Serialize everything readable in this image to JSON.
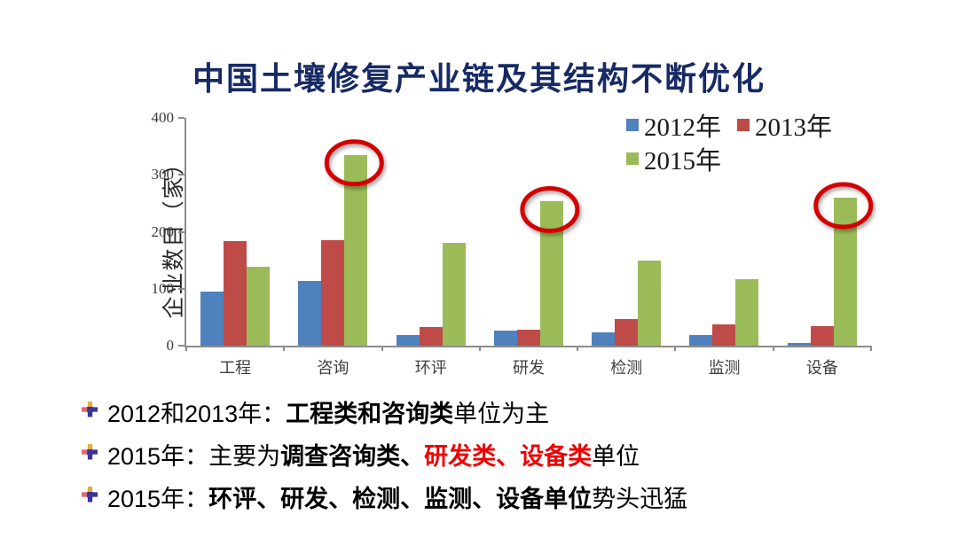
{
  "title": "中国土壤修复产业链及其结构不断优化",
  "colors": {
    "title": "#172a64",
    "axis": "#8c8c8c",
    "circle": "#d40000",
    "highlight_red": "#ee0000",
    "series_2012": "#4f81bd",
    "series_2013": "#be4b48",
    "series_2015": "#9bbb59"
  },
  "chart_data": {
    "type": "bar",
    "title": "",
    "xlabel": "",
    "ylabel": "企业数目（家）",
    "ylim": [
      0,
      400
    ],
    "y_ticks": [
      0,
      100,
      200,
      300,
      400
    ],
    "grid": false,
    "legend_position": "top-right",
    "categories": [
      "工程",
      "咨询",
      "环评",
      "研发",
      "检测",
      "监测",
      "设备"
    ],
    "series": [
      {
        "name": "2012年",
        "color": "#4f81bd",
        "values": [
          95,
          114,
          18,
          26,
          23,
          19,
          5
        ]
      },
      {
        "name": "2013年",
        "color": "#be4b48",
        "values": [
          183,
          186,
          32,
          28,
          47,
          37,
          34
        ]
      },
      {
        "name": "2015年",
        "color": "#9bbb59",
        "values": [
          138,
          335,
          180,
          253,
          150,
          116,
          260
        ]
      }
    ],
    "circled_series": "2015年",
    "circled_categories": [
      "咨询",
      "研发",
      "设备"
    ]
  },
  "bullets": [
    {
      "segments": [
        {
          "text": "2012和2013年：",
          "bold": false,
          "color": "black"
        },
        {
          "text": "工程类和咨询类",
          "bold": true,
          "color": "black"
        },
        {
          "text": "单位为主",
          "bold": false,
          "color": "black"
        }
      ]
    },
    {
      "segments": [
        {
          "text": "2015年：主要为",
          "bold": false,
          "color": "black"
        },
        {
          "text": "调查咨询类、",
          "bold": true,
          "color": "black"
        },
        {
          "text": "研发类、设备类",
          "bold": true,
          "color": "red"
        },
        {
          "text": "单位",
          "bold": false,
          "color": "black"
        }
      ]
    },
    {
      "segments": [
        {
          "text": "2015年：",
          "bold": false,
          "color": "black"
        },
        {
          "text": "环评、研发、检测、监测、设备单位",
          "bold": true,
          "color": "black"
        },
        {
          "text": "势头迅猛",
          "bold": false,
          "color": "black"
        }
      ]
    }
  ]
}
